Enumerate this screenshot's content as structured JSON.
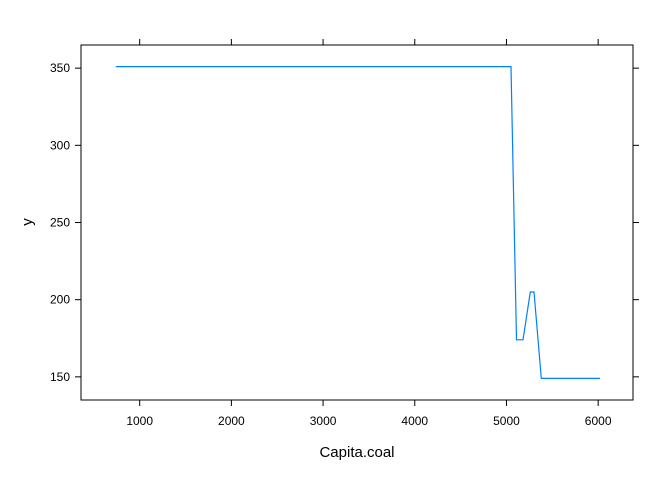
{
  "chart_data": {
    "type": "line",
    "title": "",
    "xlabel": "Capita.coal",
    "ylabel": "y",
    "xlim": [
      360,
      6380
    ],
    "ylim": [
      135,
      365
    ],
    "x_ticks": [
      1000,
      2000,
      3000,
      4000,
      5000,
      6000
    ],
    "y_ticks": [
      150,
      200,
      250,
      300,
      350
    ],
    "grid": false,
    "legend": "none",
    "color": "#0080ff",
    "series": [
      {
        "x": [
          740,
          5050,
          5110,
          5180,
          5260,
          5300,
          5380,
          6020
        ],
        "y": [
          351,
          351,
          174,
          174,
          205,
          205,
          149,
          149
        ]
      }
    ]
  }
}
